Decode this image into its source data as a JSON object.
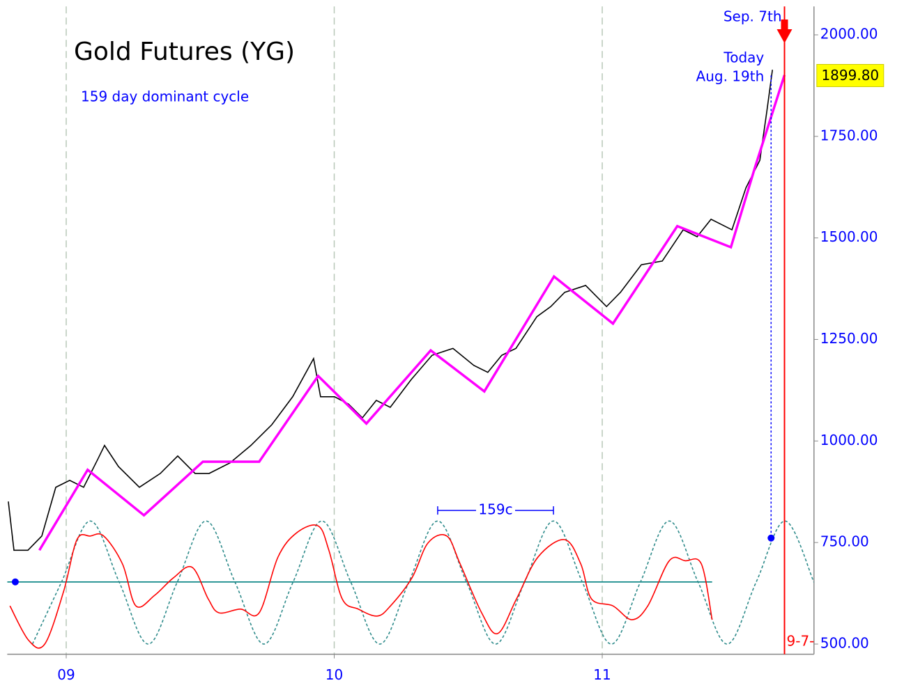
{
  "chart_data": {
    "type": "line",
    "title": "Gold Futures (YG)",
    "subtitle": "159 day dominant cycle",
    "xlim": [
      2008.78,
      2011.79
    ],
    "ylim": [
      475,
      2070
    ],
    "xticks": [
      {
        "value": 2009,
        "label": "09"
      },
      {
        "value": 2010,
        "label": "10"
      },
      {
        "value": 2011,
        "label": "11"
      }
    ],
    "yticks": [
      {
        "value": 500,
        "label": "500.00"
      },
      {
        "value": 750,
        "label": "750.00"
      },
      {
        "value": 1000,
        "label": "1000.00"
      },
      {
        "value": 1250,
        "label": "1250.00"
      },
      {
        "value": 1500,
        "label": "1500.00"
      },
      {
        "value": 1750,
        "label": "1750.00"
      },
      {
        "value": 2000,
        "label": "2000.00"
      }
    ],
    "grid": true,
    "series": [
      {
        "color": "#000000",
        "style": "solid",
        "smooth": false,
        "x": [
          2008.784,
          2008.805,
          2008.857,
          2008.909,
          2008.961,
          2009.013,
          2009.065,
          2009.117,
          2009.143,
          2009.195,
          2009.273,
          2009.351,
          2009.416,
          2009.481,
          2009.533,
          2009.611,
          2009.689,
          2009.767,
          2009.845,
          2009.923,
          2009.949,
          2010.001,
          2010.053,
          2010.105,
          2010.157,
          2010.209,
          2010.287,
          2010.365,
          2010.443,
          2010.521,
          2010.573,
          2010.625,
          2010.678,
          2010.756,
          2010.808,
          2010.86,
          2010.938,
          2011.016,
          2011.068,
          2011.146,
          2011.224,
          2011.302,
          2011.354,
          2011.406,
          2011.484,
          2011.536,
          2011.588,
          2011.614,
          2011.635
        ],
        "values": [
          851,
          731,
          731,
          766,
          886,
          903,
          886,
          954,
          989,
          937,
          886,
          920,
          963,
          920,
          920,
          946,
          989,
          1040,
          1109,
          1203,
          1109,
          1109,
          1091,
          1057,
          1100,
          1083,
          1151,
          1211,
          1228,
          1186,
          1169,
          1211,
          1228,
          1306,
          1331,
          1366,
          1383,
          1331,
          1366,
          1434,
          1443,
          1520,
          1503,
          1546,
          1520,
          1623,
          1691,
          1811,
          1914
        ]
      },
      {
        "color": "#ff00ff",
        "style": "solid",
        "smooth": false,
        "x": [
          2008.9,
          2009.08,
          2009.29,
          2009.51,
          2009.72,
          2009.94,
          2010.12,
          2010.36,
          2010.56,
          2010.82,
          2011.04,
          2011.28,
          2011.48,
          2011.57,
          2011.68
        ],
        "values": [
          731,
          929,
          817,
          949,
          949,
          1160,
          1043,
          1223,
          1122,
          1405,
          1289,
          1529,
          1477,
          1674,
          1901
        ]
      },
      {
        "color": "#ff0000",
        "style": "solid",
        "smooth": true,
        "x": [
          2008.79,
          2008.86,
          2008.92,
          2008.99,
          2009.04,
          2009.09,
          2009.14,
          2009.21,
          2009.26,
          2009.33,
          2009.4,
          2009.47,
          2009.53,
          2009.57,
          2009.65,
          2009.72,
          2009.79,
          2009.86,
          2009.94,
          2009.98,
          2010.03,
          2010.09,
          2010.16,
          2010.21,
          2010.29,
          2010.35,
          2010.42,
          2010.47,
          2010.55,
          2010.61,
          2010.68,
          2010.76,
          2010.86,
          2010.92,
          2010.96,
          2011.04,
          2011.11,
          2011.17,
          2011.25,
          2011.31,
          2011.37,
          2011.41
        ],
        "values": [
          594,
          509,
          500,
          629,
          757,
          766,
          766,
          697,
          594,
          620,
          663,
          689,
          611,
          577,
          586,
          577,
          714,
          774,
          791,
          731,
          611,
          586,
          569,
          594,
          663,
          749,
          766,
          697,
          577,
          526,
          611,
          714,
          757,
          697,
          611,
          594,
          560,
          594,
          705,
          705,
          697,
          560
        ]
      },
      {
        "color": "#2e8b8b",
        "style": "dashed",
        "smooth": true,
        "x": [
          2008.874,
          2008.982,
          2009.09,
          2009.198,
          2009.306,
          2009.414,
          2009.522,
          2009.63,
          2009.738,
          2009.846,
          2009.954,
          2010.062,
          2010.17,
          2010.278,
          2010.386,
          2010.494,
          2010.602,
          2010.71,
          2010.818,
          2010.926,
          2011.034,
          2011.142,
          2011.25,
          2011.358,
          2011.466,
          2011.574,
          2011.682,
          2011.79
        ],
        "values": [
          500,
          652,
          803,
          652,
          500,
          652,
          803,
          652,
          500,
          652,
          803,
          652,
          500,
          652,
          803,
          652,
          500,
          652,
          803,
          652,
          500,
          652,
          803,
          652,
          500,
          652,
          803,
          652
        ]
      },
      {
        "color": "#008080",
        "style": "solid",
        "smooth": false,
        "x": [
          2008.78,
          2011.41
        ],
        "values": [
          653,
          653
        ]
      }
    ],
    "points": [
      {
        "x": 2008.81,
        "value": 653,
        "color": "#0000ff"
      },
      {
        "x": 2011.63,
        "value": 761,
        "color": "#0000ff"
      }
    ],
    "cycle_span": {
      "label": "159c",
      "x": [
        2010.386,
        2010.818
      ],
      "value": 829,
      "color": "#0000ff"
    },
    "today_line": {
      "x": 2011.63,
      "value": 1900,
      "labels": [
        "Today",
        "Aug. 19th"
      ],
      "color": "#0000ff"
    },
    "target_line": {
      "x": 2011.68,
      "label": "Sep. 7th",
      "bottom_label": "9-7-",
      "color": "#ff0000"
    },
    "last_price": {
      "value": 1899.8,
      "label": "1899.80"
    }
  }
}
